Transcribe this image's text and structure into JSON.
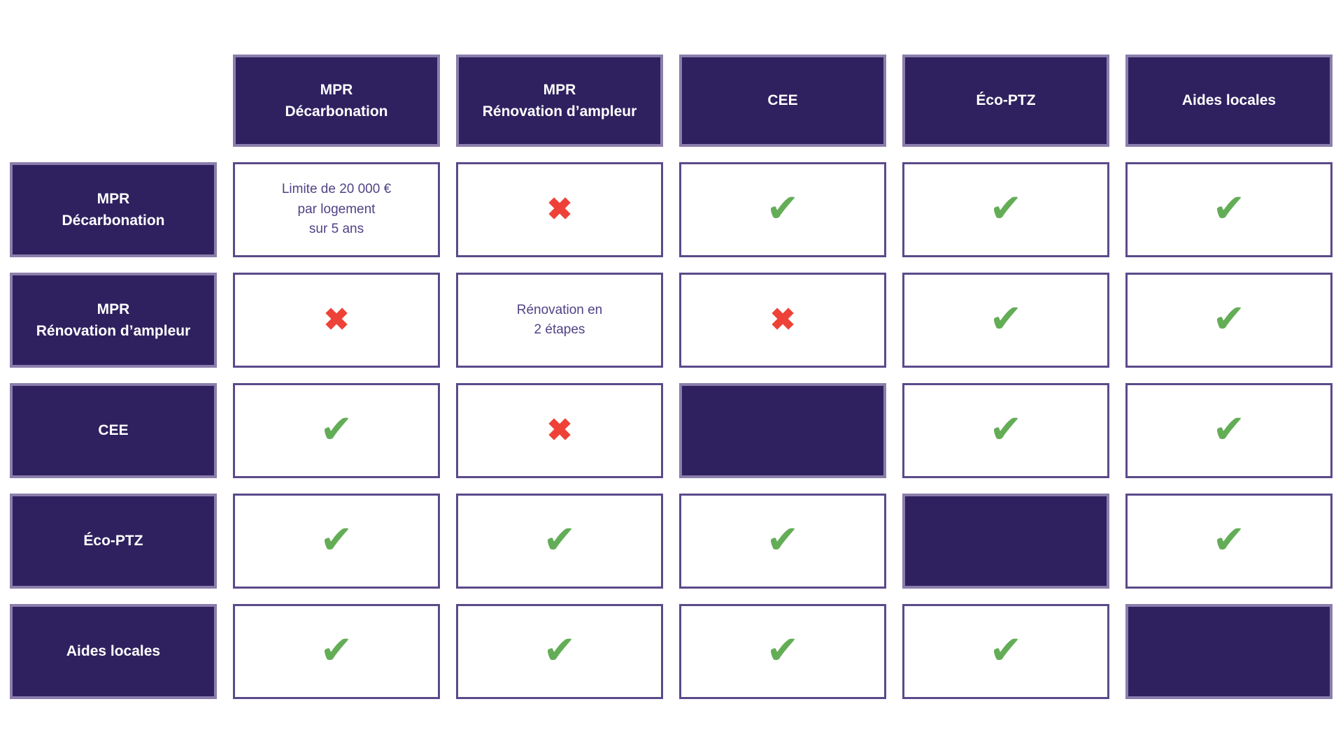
{
  "palette": {
    "dark_fill": "#2f215f",
    "dark_border": "#8b7eac",
    "cell_border": "#5b4a8a",
    "check_color": "#64ad57",
    "cross_color": "#ee4238",
    "note_text": "#514285",
    "header_text": "#ffffff",
    "page_bg": "#ffffff"
  },
  "table": {
    "icons": {
      "check": "✔",
      "cross": "✖"
    },
    "columns": [
      "MPR\nDécarbonation",
      "MPR\nRénovation d’ampleur",
      "CEE",
      "Éco-PTZ",
      "Aides locales"
    ],
    "rows": [
      {
        "label": "MPR\nDécarbonation",
        "cells": [
          {
            "type": "text",
            "text": "Limite de 20 000 €\npar logement\nsur 5 ans"
          },
          {
            "type": "cross"
          },
          {
            "type": "check"
          },
          {
            "type": "check"
          },
          {
            "type": "check"
          }
        ]
      },
      {
        "label": "MPR\nRénovation d’ampleur",
        "cells": [
          {
            "type": "cross"
          },
          {
            "type": "text",
            "text": "Rénovation en\n2 étapes"
          },
          {
            "type": "cross"
          },
          {
            "type": "check"
          },
          {
            "type": "check"
          }
        ]
      },
      {
        "label": "CEE",
        "cells": [
          {
            "type": "check"
          },
          {
            "type": "cross"
          },
          {
            "type": "self"
          },
          {
            "type": "check"
          },
          {
            "type": "check"
          }
        ]
      },
      {
        "label": "Éco-PTZ",
        "cells": [
          {
            "type": "check"
          },
          {
            "type": "check"
          },
          {
            "type": "check"
          },
          {
            "type": "self"
          },
          {
            "type": "check"
          }
        ]
      },
      {
        "label": "Aides locales",
        "cells": [
          {
            "type": "check"
          },
          {
            "type": "check"
          },
          {
            "type": "check"
          },
          {
            "type": "check"
          },
          {
            "type": "self"
          }
        ]
      }
    ]
  }
}
